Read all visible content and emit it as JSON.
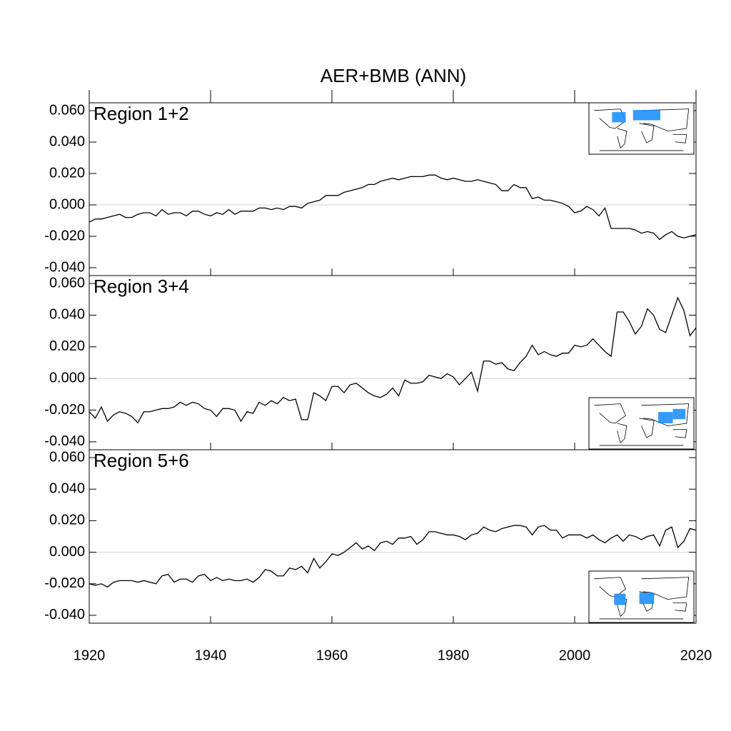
{
  "title": "AER+BMB (ANN)",
  "chart_data": [
    {
      "type": "line",
      "annotation": "Region 1+2",
      "inset_corner": "upper right",
      "color": "#000000",
      "xlim": [
        1920,
        2020
      ],
      "ylim": [
        -0.045,
        0.065
      ],
      "yticks": [
        {
          "value": 0.06,
          "label": "0.060"
        },
        {
          "value": 0.04,
          "label": "0.040"
        },
        {
          "value": 0.02,
          "label": "0.020"
        },
        {
          "value": 0,
          "label": "0.000"
        },
        {
          "value": -0.02,
          "label": "-0.020"
        },
        {
          "value": -0.04,
          "label": "-0.040"
        }
      ],
      "x": [
        1920,
        1921,
        1922,
        1923,
        1924,
        1925,
        1926,
        1927,
        1928,
        1929,
        1930,
        1931,
        1932,
        1933,
        1934,
        1935,
        1936,
        1937,
        1938,
        1939,
        1940,
        1941,
        1942,
        1943,
        1944,
        1945,
        1946,
        1947,
        1948,
        1949,
        1950,
        1951,
        1952,
        1953,
        1954,
        1955,
        1956,
        1957,
        1958,
        1959,
        1960,
        1961,
        1962,
        1963,
        1964,
        1965,
        1966,
        1967,
        1968,
        1969,
        1970,
        1971,
        1972,
        1973,
        1974,
        1975,
        1976,
        1977,
        1978,
        1979,
        1980,
        1981,
        1982,
        1983,
        1984,
        1985,
        1986,
        1987,
        1988,
        1989,
        1990,
        1991,
        1992,
        1993,
        1994,
        1995,
        1996,
        1997,
        1998,
        1999,
        2000,
        2001,
        2002,
        2003,
        2004,
        2005,
        2006,
        2007,
        2008,
        2009,
        2010,
        2011,
        2012,
        2013,
        2014,
        2015,
        2016,
        2017,
        2018,
        2019,
        2020
      ],
      "values": [
        -0.011,
        -0.009,
        -0.009,
        -0.008,
        -0.007,
        -0.006,
        -0.008,
        -0.008,
        -0.006,
        -0.005,
        -0.005,
        -0.007,
        -0.003,
        -0.006,
        -0.005,
        -0.005,
        -0.007,
        -0.004,
        -0.004,
        -0.006,
        -0.007,
        -0.005,
        -0.006,
        -0.003,
        -0.006,
        -0.004,
        -0.004,
        -0.004,
        -0.002,
        -0.002,
        -0.003,
        -0.002,
        -0.003,
        -0.001,
        -0.001,
        -0.002,
        0.001,
        0.002,
        0.003,
        0.006,
        0.006,
        0.006,
        0.008,
        0.009,
        0.01,
        0.011,
        0.013,
        0.013,
        0.015,
        0.016,
        0.017,
        0.016,
        0.017,
        0.018,
        0.018,
        0.018,
        0.019,
        0.019,
        0.017,
        0.016,
        0.017,
        0.016,
        0.015,
        0.015,
        0.016,
        0.015,
        0.014,
        0.013,
        0.009,
        0.009,
        0.013,
        0.011,
        0.011,
        0.004,
        0.005,
        0.003,
        0.003,
        0.002,
        0.001,
        -0.001,
        -0.005,
        -0.004,
        -0.001,
        -0.003,
        -0.007,
        -0.002,
        -0.015,
        -0.015,
        -0.015,
        -0.015,
        -0.016,
        -0.018,
        -0.017,
        -0.018,
        -0.022,
        -0.019,
        -0.017,
        -0.02,
        -0.021,
        -0.02,
        -0.019
      ]
    },
    {
      "type": "line",
      "annotation": "Region 3+4",
      "inset_corner": "lower right",
      "color": "#000000",
      "xlim": [
        1920,
        2020
      ],
      "ylim": [
        -0.045,
        0.065
      ],
      "yticks": [
        {
          "value": 0.06,
          "label": "0.060"
        },
        {
          "value": 0.04,
          "label": "0.040"
        },
        {
          "value": 0.02,
          "label": "0.020"
        },
        {
          "value": 0,
          "label": "0.000"
        },
        {
          "value": -0.02,
          "label": "-0.020"
        },
        {
          "value": -0.04,
          "label": "-0.040"
        }
      ],
      "x": [
        1920,
        1921,
        1922,
        1923,
        1924,
        1925,
        1926,
        1927,
        1928,
        1929,
        1930,
        1931,
        1932,
        1933,
        1934,
        1935,
        1936,
        1937,
        1938,
        1939,
        1940,
        1941,
        1942,
        1943,
        1944,
        1945,
        1946,
        1947,
        1948,
        1949,
        1950,
        1951,
        1952,
        1953,
        1954,
        1955,
        1956,
        1957,
        1958,
        1959,
        1960,
        1961,
        1962,
        1963,
        1964,
        1965,
        1966,
        1967,
        1968,
        1969,
        1970,
        1971,
        1972,
        1973,
        1974,
        1975,
        1976,
        1977,
        1978,
        1979,
        1980,
        1981,
        1982,
        1983,
        1984,
        1985,
        1986,
        1987,
        1988,
        1989,
        1990,
        1991,
        1992,
        1993,
        1994,
        1995,
        1996,
        1997,
        1998,
        1999,
        2000,
        2001,
        2002,
        2003,
        2004,
        2005,
        2006,
        2007,
        2008,
        2009,
        2010,
        2011,
        2012,
        2013,
        2014,
        2015,
        2016,
        2017,
        2018,
        2019,
        2020
      ],
      "values": [
        -0.021,
        -0.025,
        -0.018,
        -0.027,
        -0.023,
        -0.021,
        -0.022,
        -0.024,
        -0.028,
        -0.021,
        -0.021,
        -0.02,
        -0.019,
        -0.019,
        -0.018,
        -0.015,
        -0.017,
        -0.015,
        -0.016,
        -0.019,
        -0.02,
        -0.024,
        -0.019,
        -0.019,
        -0.02,
        -0.027,
        -0.021,
        -0.022,
        -0.015,
        -0.017,
        -0.014,
        -0.016,
        -0.012,
        -0.014,
        -0.013,
        -0.026,
        -0.026,
        -0.009,
        -0.011,
        -0.014,
        -0.005,
        -0.005,
        -0.009,
        -0.004,
        -0.003,
        -0.006,
        -0.009,
        -0.011,
        -0.012,
        -0.01,
        -0.006,
        -0.011,
        -0.001,
        -0.003,
        -0.003,
        -0.002,
        0.002,
        0.001,
        0.0,
        0.003,
        0.001,
        -0.004,
        0.0,
        0.004,
        -0.008,
        0.011,
        0.011,
        0.009,
        0.01,
        0.006,
        0.005,
        0.01,
        0.014,
        0.021,
        0.015,
        0.017,
        0.015,
        0.014,
        0.016,
        0.016,
        0.021,
        0.02,
        0.021,
        0.025,
        0.021,
        0.017,
        0.014,
        0.042,
        0.042,
        0.036,
        0.028,
        0.033,
        0.044,
        0.04,
        0.031,
        0.029,
        0.04,
        0.051,
        0.043,
        0.027,
        0.032
      ]
    },
    {
      "type": "line",
      "annotation": "Region 5+6",
      "inset_corner": "lower right",
      "color": "#000000",
      "xlim": [
        1920,
        2020
      ],
      "xticks": [
        1920,
        1940,
        1960,
        1980,
        2000,
        2020
      ],
      "ylim": [
        -0.045,
        0.065
      ],
      "yticks": [
        {
          "value": 0.06,
          "label": "0.060"
        },
        {
          "value": 0.04,
          "label": "0.040"
        },
        {
          "value": 0.02,
          "label": "0.020"
        },
        {
          "value": 0,
          "label": "0.000"
        },
        {
          "value": -0.02,
          "label": "-0.020"
        },
        {
          "value": -0.04,
          "label": "-0.040"
        }
      ],
      "x": [
        1920,
        1921,
        1922,
        1923,
        1924,
        1925,
        1926,
        1927,
        1928,
        1929,
        1930,
        1931,
        1932,
        1933,
        1934,
        1935,
        1936,
        1937,
        1938,
        1939,
        1940,
        1941,
        1942,
        1943,
        1944,
        1945,
        1946,
        1947,
        1948,
        1949,
        1950,
        1951,
        1952,
        1953,
        1954,
        1955,
        1956,
        1957,
        1958,
        1959,
        1960,
        1961,
        1962,
        1963,
        1964,
        1965,
        1966,
        1967,
        1968,
        1969,
        1970,
        1971,
        1972,
        1973,
        1974,
        1975,
        1976,
        1977,
        1978,
        1979,
        1980,
        1981,
        1982,
        1983,
        1984,
        1985,
        1986,
        1987,
        1988,
        1989,
        1990,
        1991,
        1992,
        1993,
        1994,
        1995,
        1996,
        1997,
        1998,
        1999,
        2000,
        2001,
        2002,
        2003,
        2004,
        2005,
        2006,
        2007,
        2008,
        2009,
        2010,
        2011,
        2012,
        2013,
        2014,
        2015,
        2016,
        2017,
        2018,
        2019,
        2020
      ],
      "values": [
        -0.02,
        -0.021,
        -0.02,
        -0.022,
        -0.019,
        -0.018,
        -0.018,
        -0.018,
        -0.019,
        -0.018,
        -0.019,
        -0.02,
        -0.015,
        -0.014,
        -0.019,
        -0.017,
        -0.017,
        -0.019,
        -0.015,
        -0.014,
        -0.018,
        -0.016,
        -0.018,
        -0.017,
        -0.018,
        -0.018,
        -0.017,
        -0.019,
        -0.016,
        -0.011,
        -0.012,
        -0.015,
        -0.015,
        -0.01,
        -0.011,
        -0.009,
        -0.013,
        -0.004,
        -0.01,
        -0.006,
        -0.001,
        -0.002,
        0.0,
        0.003,
        0.006,
        0.002,
        0.004,
        0.001,
        0.006,
        0.007,
        0.005,
        0.009,
        0.009,
        0.01,
        0.005,
        0.008,
        0.013,
        0.013,
        0.012,
        0.011,
        0.011,
        0.01,
        0.008,
        0.011,
        0.012,
        0.016,
        0.014,
        0.013,
        0.015,
        0.016,
        0.017,
        0.017,
        0.016,
        0.011,
        0.016,
        0.017,
        0.014,
        0.014,
        0.009,
        0.011,
        0.011,
        0.011,
        0.009,
        0.011,
        0.008,
        0.006,
        0.009,
        0.011,
        0.007,
        0.011,
        0.01,
        0.008,
        0.01,
        0.011,
        0.004,
        0.014,
        0.016,
        0.003,
        0.007,
        0.015,
        0.014
      ]
    }
  ]
}
